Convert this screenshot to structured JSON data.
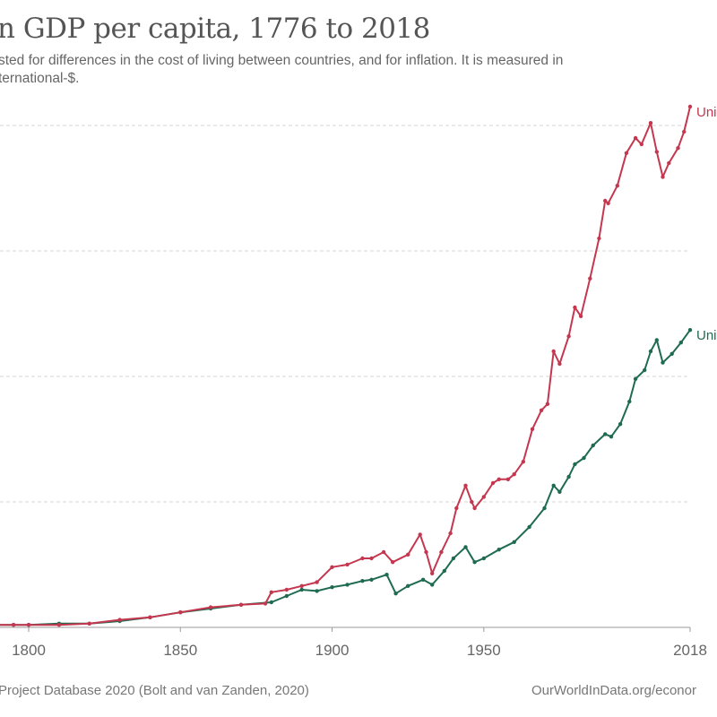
{
  "header": {
    "title": "n GDP per capita, 1776 to 2018",
    "subtitle_lines": [
      "sted for differences in the cost of living between countries, and for inflation. It is measured in",
      "ternational-$."
    ]
  },
  "footer": {
    "source": "Project Database 2020 (Bolt and van Zanden, 2020)",
    "url": "OurWorldInData.org/econor"
  },
  "chart_data": {
    "type": "line",
    "title": "n GDP per capita, 1776 to 2018",
    "xlabel": "",
    "ylabel": "",
    "y_units_note": "y-axis tick labels are cropped out of view; values expressed in gridline units (gridlines at 1, 2, 3, 4)",
    "xlim": [
      1776,
      2018
    ],
    "ylim": [
      0,
      4.2
    ],
    "x_ticks": [
      1800,
      1850,
      1900,
      1950,
      2018
    ],
    "x_tick_labels": [
      "1800",
      "1850",
      "1900",
      "1950",
      "2018"
    ],
    "y_gridlines": [
      1,
      2,
      3,
      4
    ],
    "grid": true,
    "legend": "end-of-line labels (right)",
    "series": [
      {
        "name": "Uni",
        "color": "#c4374f",
        "points": [
          [
            1776,
            0.01
          ],
          [
            1785,
            0.02
          ],
          [
            1795,
            0.02
          ],
          [
            1800,
            0.02
          ],
          [
            1810,
            0.02
          ],
          [
            1820,
            0.03
          ],
          [
            1830,
            0.06
          ],
          [
            1840,
            0.08
          ],
          [
            1850,
            0.12
          ],
          [
            1860,
            0.16
          ],
          [
            1870,
            0.18
          ],
          [
            1878,
            0.19
          ],
          [
            1880,
            0.28
          ],
          [
            1885,
            0.3
          ],
          [
            1890,
            0.33
          ],
          [
            1895,
            0.36
          ],
          [
            1900,
            0.48
          ],
          [
            1905,
            0.5
          ],
          [
            1910,
            0.55
          ],
          [
            1913,
            0.55
          ],
          [
            1917,
            0.6
          ],
          [
            1920,
            0.52
          ],
          [
            1925,
            0.58
          ],
          [
            1929,
            0.74
          ],
          [
            1931,
            0.6
          ],
          [
            1933,
            0.43
          ],
          [
            1936,
            0.6
          ],
          [
            1939,
            0.75
          ],
          [
            1941,
            0.95
          ],
          [
            1944,
            1.13
          ],
          [
            1946,
            1.0
          ],
          [
            1947,
            0.95
          ],
          [
            1950,
            1.04
          ],
          [
            1953,
            1.15
          ],
          [
            1955,
            1.18
          ],
          [
            1958,
            1.18
          ],
          [
            1960,
            1.22
          ],
          [
            1963,
            1.32
          ],
          [
            1966,
            1.58
          ],
          [
            1969,
            1.73
          ],
          [
            1971,
            1.78
          ],
          [
            1973,
            2.2
          ],
          [
            1975,
            2.1
          ],
          [
            1978,
            2.32
          ],
          [
            1980,
            2.55
          ],
          [
            1982,
            2.48
          ],
          [
            1985,
            2.78
          ],
          [
            1988,
            3.1
          ],
          [
            1990,
            3.4
          ],
          [
            1991,
            3.38
          ],
          [
            1994,
            3.52
          ],
          [
            1997,
            3.78
          ],
          [
            2000,
            3.9
          ],
          [
            2002,
            3.85
          ],
          [
            2005,
            4.02
          ],
          [
            2007,
            3.79
          ],
          [
            2009,
            3.59
          ],
          [
            2011,
            3.7
          ],
          [
            2014,
            3.82
          ],
          [
            2016,
            3.95
          ],
          [
            2018,
            4.15
          ]
        ]
      },
      {
        "name": "Uni",
        "color": "#1f6b52",
        "points": [
          [
            1776,
            0.01
          ],
          [
            1785,
            0.02
          ],
          [
            1795,
            0.02
          ],
          [
            1800,
            0.02
          ],
          [
            1810,
            0.03
          ],
          [
            1820,
            0.03
          ],
          [
            1830,
            0.05
          ],
          [
            1840,
            0.08
          ],
          [
            1850,
            0.12
          ],
          [
            1860,
            0.15
          ],
          [
            1870,
            0.18
          ],
          [
            1880,
            0.2
          ],
          [
            1885,
            0.25
          ],
          [
            1890,
            0.3
          ],
          [
            1895,
            0.29
          ],
          [
            1900,
            0.32
          ],
          [
            1905,
            0.34
          ],
          [
            1910,
            0.37
          ],
          [
            1913,
            0.38
          ],
          [
            1918,
            0.42
          ],
          [
            1921,
            0.27
          ],
          [
            1925,
            0.33
          ],
          [
            1930,
            0.38
          ],
          [
            1933,
            0.34
          ],
          [
            1937,
            0.45
          ],
          [
            1940,
            0.55
          ],
          [
            1944,
            0.64
          ],
          [
            1947,
            0.52
          ],
          [
            1950,
            0.55
          ],
          [
            1955,
            0.62
          ],
          [
            1960,
            0.68
          ],
          [
            1965,
            0.8
          ],
          [
            1970,
            0.95
          ],
          [
            1973,
            1.13
          ],
          [
            1975,
            1.08
          ],
          [
            1978,
            1.2
          ],
          [
            1980,
            1.3
          ],
          [
            1983,
            1.35
          ],
          [
            1986,
            1.45
          ],
          [
            1990,
            1.54
          ],
          [
            1992,
            1.52
          ],
          [
            1995,
            1.62
          ],
          [
            1998,
            1.8
          ],
          [
            2000,
            1.98
          ],
          [
            2003,
            2.05
          ],
          [
            2005,
            2.2
          ],
          [
            2007,
            2.29
          ],
          [
            2009,
            2.11
          ],
          [
            2012,
            2.18
          ],
          [
            2015,
            2.27
          ],
          [
            2018,
            2.37
          ]
        ]
      }
    ]
  }
}
